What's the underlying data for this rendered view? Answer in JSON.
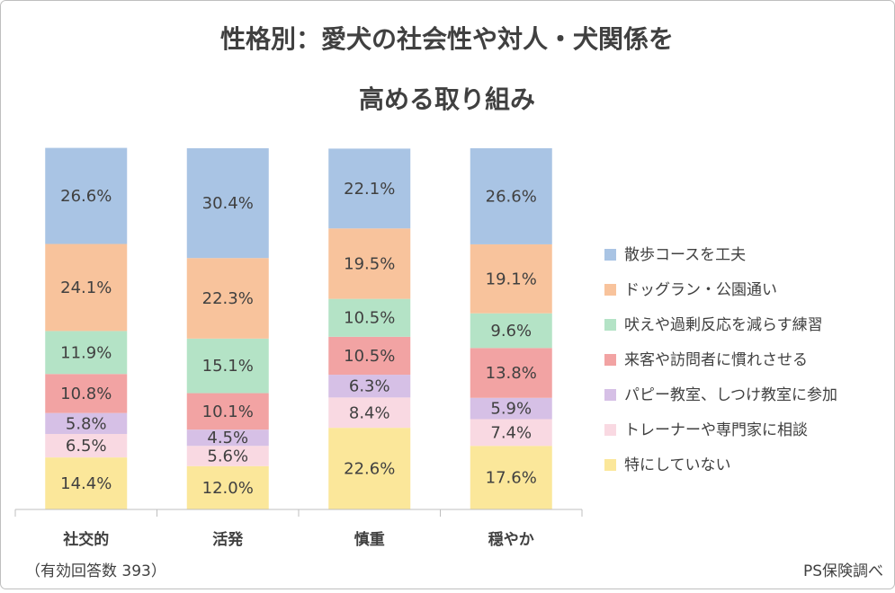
{
  "chart_data": {
    "type": "stacked-bar",
    "title": [
      "性格別：愛犬の社会性や対人・犬関係を",
      "高める取り組み"
    ],
    "categories": [
      "社交的",
      "活発",
      "慎重",
      "穏やか"
    ],
    "ylim": [
      0,
      100
    ],
    "series": [
      {
        "name": "散歩コースを工夫",
        "color": "#a9c4e4",
        "values": [
          26.6,
          30.4,
          22.1,
          26.6
        ],
        "value_labels": [
          "26.6%",
          "30.4%",
          "22.1%",
          "26.6%"
        ]
      },
      {
        "name": "ドッグラン・公園通い",
        "color": "#f8c39c",
        "values": [
          24.1,
          22.3,
          19.5,
          19.1
        ],
        "value_labels": [
          "24.1%",
          "22.3%",
          "19.5%",
          "19.1%"
        ]
      },
      {
        "name": "吠えや過剰反応を減らす練習",
        "color": "#b4e3c6",
        "values": [
          11.9,
          15.1,
          10.5,
          9.6
        ],
        "value_labels": [
          "11.9%",
          "15.1%",
          "10.5%",
          "9.6%"
        ]
      },
      {
        "name": "来客や訪問者に慣れさせる",
        "color": "#f2a3a3",
        "values": [
          10.8,
          10.1,
          10.5,
          13.8
        ],
        "value_labels": [
          "10.8%",
          "10.1%",
          "10.5%",
          "13.8%"
        ]
      },
      {
        "name": "パピー教室、しつけ教室に参加",
        "color": "#d6c0e6",
        "values": [
          5.8,
          4.5,
          6.3,
          5.9
        ],
        "value_labels": [
          "5.8%",
          "4.5%",
          "6.3%",
          "5.9%"
        ]
      },
      {
        "name": "トレーナーや専門家に相談",
        "color": "#f9d9e2",
        "values": [
          6.5,
          5.6,
          8.4,
          7.4
        ],
        "value_labels": [
          "6.5%",
          "5.6%",
          "8.4%",
          "7.4%"
        ]
      },
      {
        "name": "特にしていない",
        "color": "#fbe79a",
        "values": [
          14.4,
          12.0,
          22.6,
          17.6
        ],
        "value_labels": [
          "14.4%",
          "12.0%",
          "22.6%",
          "17.6%"
        ]
      }
    ],
    "note": "（有効回答数 393）",
    "source": "PS保険調べ"
  }
}
